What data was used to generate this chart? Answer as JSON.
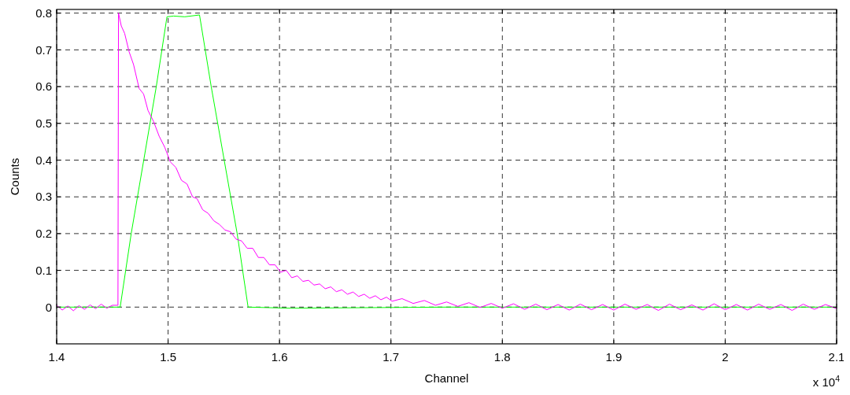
{
  "chart_data": {
    "type": "line",
    "xlabel": "Channel",
    "ylabel": "Counts",
    "xlim": [
      1.4,
      2.1
    ],
    "ylim": [
      -0.1,
      0.81
    ],
    "xticks": [
      1.4,
      1.5,
      1.6,
      1.7,
      1.8,
      1.9,
      2,
      2.1
    ],
    "yticks": [
      0,
      0.1,
      0.2,
      0.3,
      0.4,
      0.5,
      0.6,
      0.7,
      0.8
    ],
    "grid": true,
    "line_style": "solid",
    "marker": "none",
    "annotations": [
      "x 10$^{4}$"
    ],
    "series": [
      {
        "color": "#00ff00",
        "x": [
          1.4,
          1.457,
          1.4669,
          1.4894,
          1.499,
          1.505,
          1.515,
          1.5282,
          1.5387,
          1.562,
          1.5718,
          1.61,
          1.75,
          2.1
        ],
        "values": [
          0,
          0,
          0.2,
          0.6,
          0.79,
          0.792,
          0.79,
          0.795,
          0.6,
          0.2,
          0,
          -0.003,
          0,
          0
        ]
      },
      {
        "color": "#ff00ff",
        "x": [
          1.4,
          1.405,
          1.41,
          1.415,
          1.42,
          1.425,
          1.43,
          1.435,
          1.44,
          1.445,
          1.45,
          1.455,
          1.4555,
          1.458,
          1.461,
          1.465,
          1.469,
          1.474,
          1.478,
          1.482,
          1.487,
          1.492,
          1.497,
          1.502,
          1.507,
          1.512,
          1.517,
          1.522,
          1.526,
          1.531,
          1.536,
          1.541,
          1.546,
          1.551,
          1.556,
          1.561,
          1.566,
          1.571,
          1.576,
          1.581,
          1.586,
          1.591,
          1.596,
          1.601,
          1.606,
          1.611,
          1.616,
          1.621,
          1.626,
          1.631,
          1.636,
          1.641,
          1.646,
          1.651,
          1.656,
          1.661,
          1.666,
          1.671,
          1.676,
          1.681,
          1.686,
          1.691,
          1.696,
          1.701,
          1.71,
          1.72,
          1.73,
          1.74,
          1.75,
          1.76,
          1.77,
          1.78,
          1.79,
          1.8,
          1.81,
          1.82,
          1.83,
          1.84,
          1.85,
          1.86,
          1.87,
          1.88,
          1.89,
          1.9,
          1.91,
          1.92,
          1.93,
          1.94,
          1.95,
          1.96,
          1.97,
          1.98,
          1.99,
          2,
          2.01,
          2.02,
          2.03,
          2.04,
          2.05,
          2.06,
          2.07,
          2.08,
          2.09,
          2.1
        ],
        "values": [
          0.005,
          -0.008,
          0.003,
          -0.01,
          0.004,
          -0.006,
          0.006,
          -0.004,
          0.008,
          -0.003,
          0.005,
          0.005,
          0.8,
          0.765,
          0.745,
          0.695,
          0.66,
          0.595,
          0.58,
          0.535,
          0.505,
          0.465,
          0.435,
          0.395,
          0.38,
          0.345,
          0.335,
          0.3,
          0.295,
          0.265,
          0.255,
          0.235,
          0.225,
          0.21,
          0.205,
          0.185,
          0.18,
          0.16,
          0.16,
          0.135,
          0.135,
          0.115,
          0.115,
          0.095,
          0.1,
          0.08,
          0.085,
          0.07,
          0.073,
          0.06,
          0.063,
          0.05,
          0.055,
          0.042,
          0.047,
          0.035,
          0.041,
          0.029,
          0.035,
          0.024,
          0.031,
          0.02,
          0.027,
          0.016,
          0.023,
          0.01,
          0.018,
          0.005,
          0.014,
          0.002,
          0.012,
          -0.001,
          0.01,
          -0.003,
          0.009,
          -0.006,
          0.008,
          -0.007,
          0.007,
          -0.008,
          0.008,
          -0.007,
          0.007,
          -0.008,
          0.008,
          -0.006,
          0.007,
          -0.009,
          0.008,
          -0.007,
          0.006,
          -0.008,
          0.009,
          -0.007,
          0.007,
          -0.008,
          0.008,
          -0.006,
          0.007,
          -0.009,
          0.008,
          -0.006,
          0.007,
          -0.004
        ]
      }
    ]
  }
}
